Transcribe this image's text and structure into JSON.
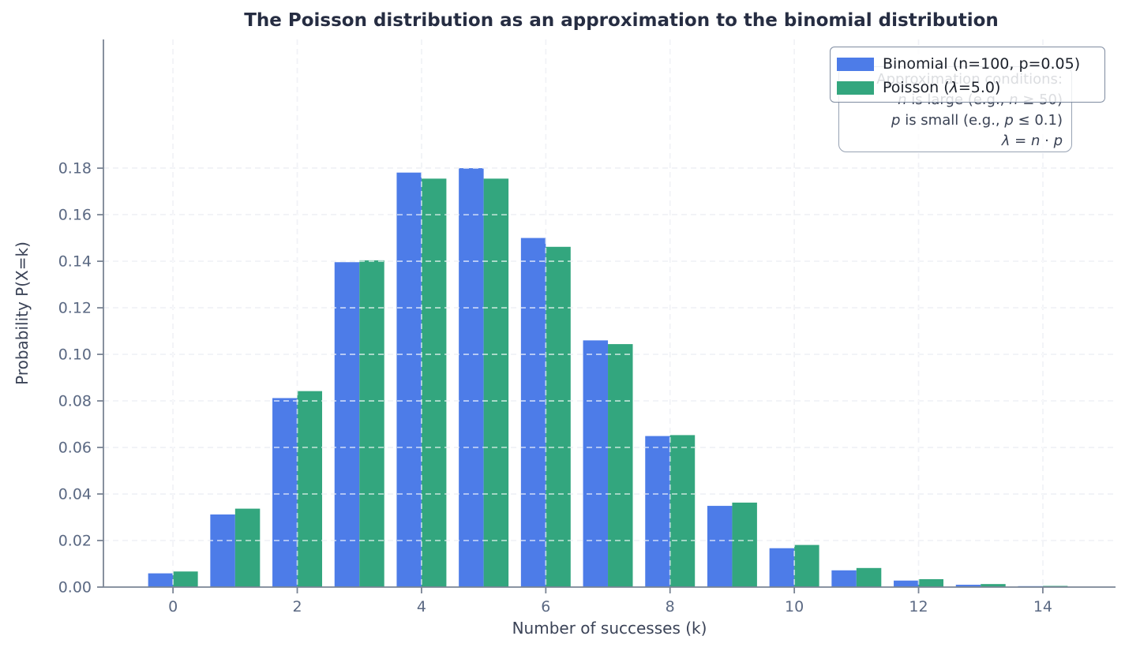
{
  "chart_data": {
    "type": "bar",
    "title": "The Poisson distribution as an approximation to the binomial distribution",
    "xlabel": "Number of successes (k)",
    "ylabel": "Probability P(X=k)",
    "x": [
      0,
      1,
      2,
      3,
      4,
      5,
      6,
      7,
      8,
      9,
      10,
      11,
      12,
      13,
      14
    ],
    "series": [
      {
        "name": "Binomial (n=100, p=0.05)",
        "color": "#4D7CE8",
        "values": [
          0.0059,
          0.0312,
          0.0812,
          0.1396,
          0.1781,
          0.18,
          0.15,
          0.106,
          0.0649,
          0.0349,
          0.0167,
          0.0072,
          0.0028,
          0.001,
          0.0004
        ]
      },
      {
        "name": "Poisson (λ=5.0)",
        "color": "#33A67E",
        "values": [
          0.0067,
          0.0337,
          0.0842,
          0.1404,
          0.1755,
          0.1755,
          0.1462,
          0.1044,
          0.0653,
          0.0363,
          0.0181,
          0.0082,
          0.0034,
          0.0013,
          0.0005
        ]
      }
    ],
    "bar_width": 0.4,
    "xticks": [
      0,
      2,
      4,
      6,
      8,
      10,
      12,
      14
    ],
    "yticks": [
      0,
      0.02,
      0.04,
      0.06,
      0.08,
      0.1,
      0.12,
      0.14,
      0.16,
      0.18
    ],
    "ytick_labels": [
      "0.00",
      "0.02",
      "0.04",
      "0.06",
      "0.08",
      "0.10",
      "0.12",
      "0.14",
      "0.16",
      "0.18"
    ],
    "xlim": [
      -1.12,
      15.17
    ],
    "ylim": [
      0,
      0.2353
    ],
    "grid": "dashed",
    "legend_position": "upper right"
  },
  "legend": {
    "items": [
      {
        "color": "#4D7CE8",
        "segments": [
          {
            "t": "Binomial (n=100, p=0.05)",
            "i": false
          }
        ]
      },
      {
        "color": "#33A67E",
        "segments": [
          {
            "t": "Poisson (",
            "i": false
          },
          {
            "t": "λ",
            "i": true
          },
          {
            "t": "=5.0)",
            "i": false
          }
        ]
      }
    ]
  },
  "annotation": {
    "lines": [
      [
        {
          "t": "Approximation conditions:",
          "i": false
        }
      ],
      [
        {
          "t": "n",
          "i": true
        },
        {
          "t": " is large (e.g., ",
          "i": false
        },
        {
          "t": "n",
          "i": true
        },
        {
          "t": " ≥ 50)",
          "i": false
        }
      ],
      [
        {
          "t": "p",
          "i": true
        },
        {
          "t": " is small (e.g., ",
          "i": false
        },
        {
          "t": "p",
          "i": true
        },
        {
          "t": " ≤ 0.1)",
          "i": false
        }
      ],
      [
        {
          "t": "λ",
          "i": true
        },
        {
          "t": " = ",
          "i": false
        },
        {
          "t": "n",
          "i": true
        },
        {
          "t": " · ",
          "i": false
        },
        {
          "t": "p",
          "i": true
        }
      ]
    ]
  },
  "colors": {
    "binomial_bar": "#4D7CE8",
    "poisson_bar": "#33A67E",
    "spine": "#7a8494",
    "tick_label": "#5b6983",
    "axis_label": "#3b4357",
    "title": "#262d42",
    "grid_below": "#d9dee8",
    "grid_above": "rgba(255,255,255,0.62)"
  }
}
